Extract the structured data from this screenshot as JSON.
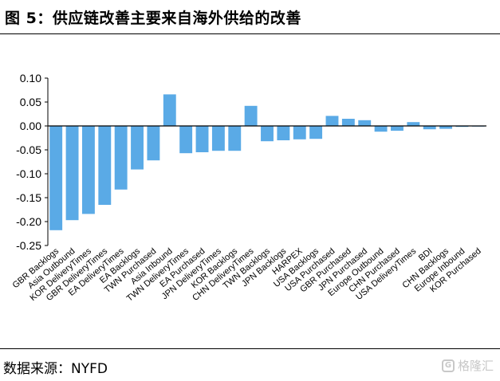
{
  "header": {
    "title": "图 5：供应链改善主要来自海外供给的改善"
  },
  "footer": {
    "source": "数据来源：NYFD",
    "watermark_text": "格隆汇",
    "watermark_logo": "G"
  },
  "colors": {
    "bar": "#5aaae6",
    "axis": "#000000"
  },
  "chart_data": {
    "type": "bar",
    "title": "",
    "xlabel": "",
    "ylabel": "",
    "ylim": [
      -0.25,
      0.1
    ],
    "yticks": [
      0.1,
      0.05,
      0.0,
      -0.05,
      -0.1,
      -0.15,
      -0.2,
      -0.25
    ],
    "ytick_labels": [
      "0.10",
      "0.05",
      "0.00",
      "-0.05",
      "-0.10",
      "-0.15",
      "-0.20",
      "-0.25"
    ],
    "grid": false,
    "legend": "none",
    "categories": [
      "GBR Backlogs",
      "Asia Outbound",
      "KOR DeliveryTimes",
      "GBR DeliveryTimes",
      "EA DeliveryTimes",
      "EA Backlogs",
      "TWN Purchased",
      "Asia Inbound",
      "TWN DeliveryTimes",
      "EA Purchased",
      "JPN DeliveryTimes",
      "KOR Backlogs",
      "CHN DeliveryTimes",
      "TWN Backlogs",
      "JPN Backlogs",
      "HARPEX",
      "USA Backlogs",
      "USA Purchased",
      "GBR Purchased",
      "JPN Purchased",
      "Europe Outbound",
      "CHN Purchased",
      "USA DeliveryTimes",
      "BDI",
      "CHN Backlogs",
      "Europe Inbound",
      "KOR Purchased"
    ],
    "values": [
      -0.218,
      -0.197,
      -0.184,
      -0.165,
      -0.133,
      -0.091,
      -0.072,
      0.066,
      -0.057,
      -0.055,
      -0.052,
      -0.052,
      0.042,
      -0.032,
      -0.03,
      -0.028,
      -0.027,
      0.021,
      0.015,
      0.012,
      -0.012,
      -0.01,
      0.008,
      -0.007,
      -0.006,
      -0.002,
      -0.001
    ]
  }
}
